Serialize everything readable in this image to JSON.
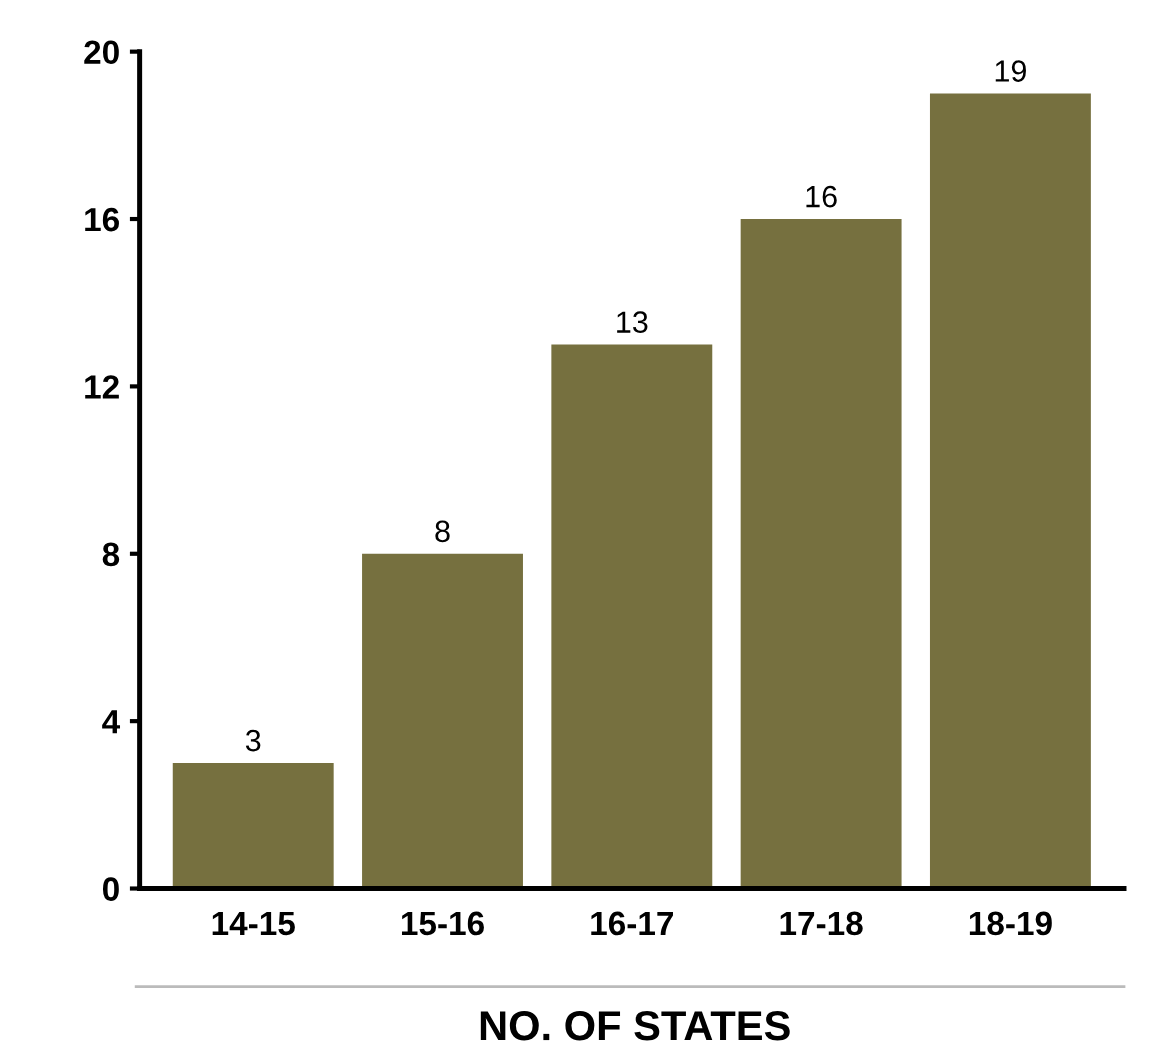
{
  "chart_data": {
    "type": "bar",
    "xlabel": "NO. OF STATES",
    "categories": [
      "14-15",
      "15-16",
      "16-17",
      "17-18",
      "18-19"
    ],
    "values": [
      3,
      8,
      13,
      16,
      19
    ],
    "color": "#76703f",
    "ylim": [
      0,
      20
    ],
    "yticks": [
      0,
      4,
      8,
      12,
      16,
      20
    ],
    "grid": false,
    "data_labels": true
  }
}
